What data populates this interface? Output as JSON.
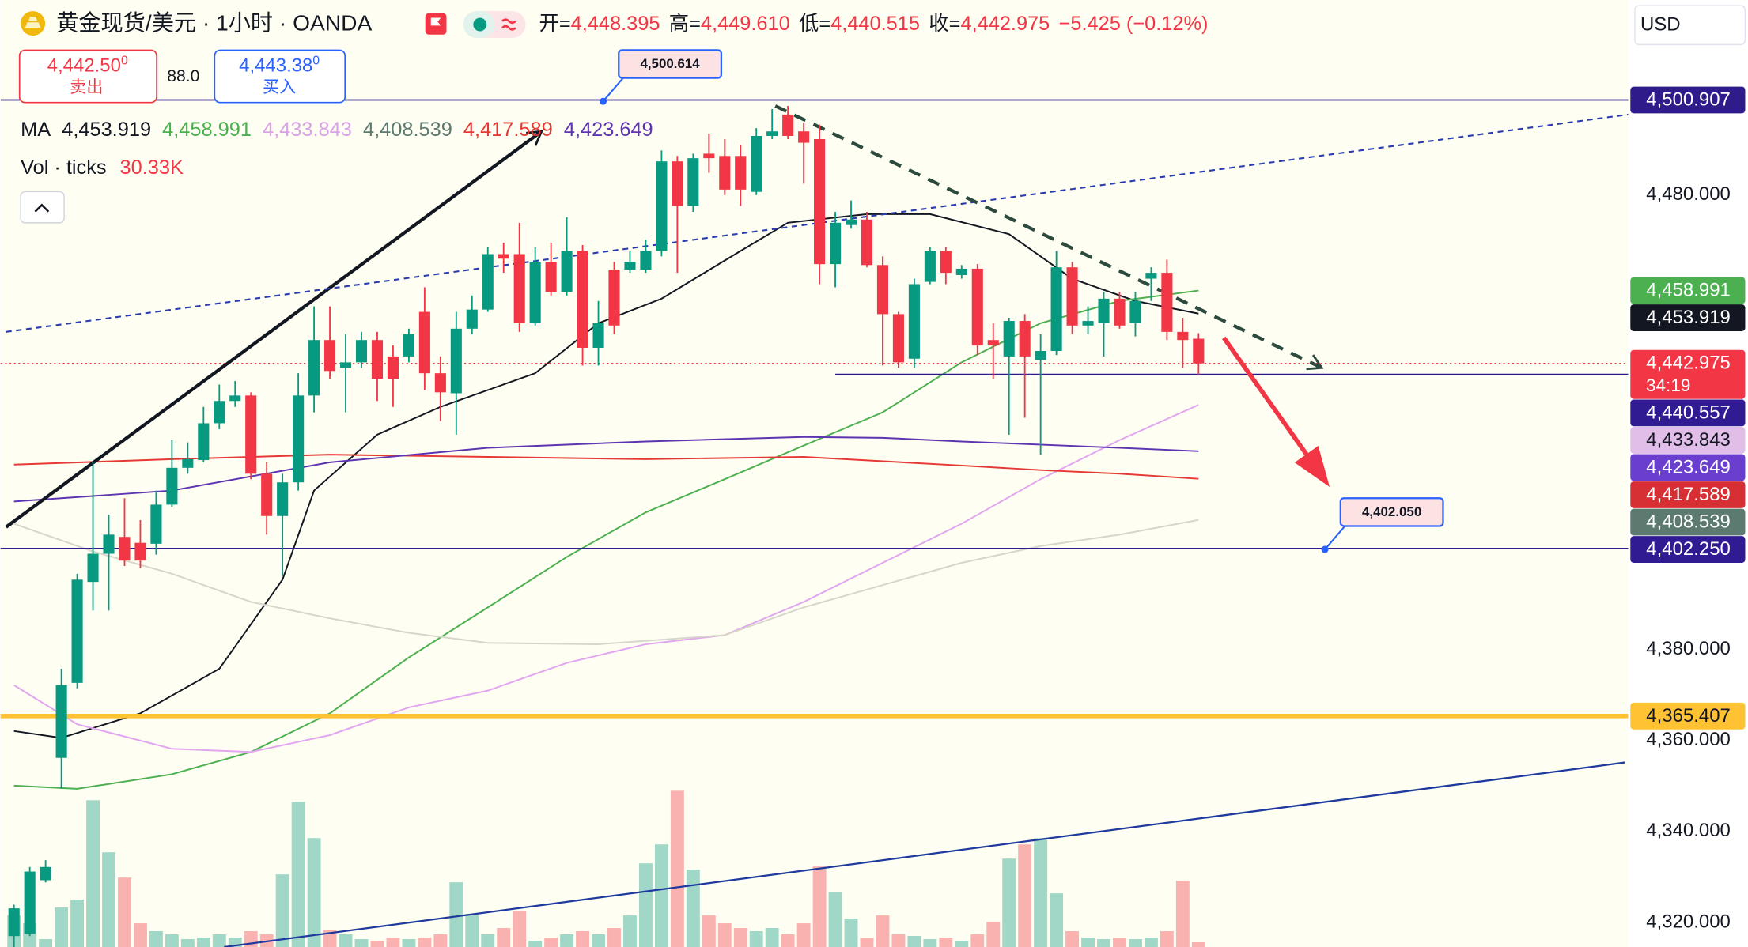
{
  "header": {
    "symbol": "黄金现货/美元 · 1小时 · OANDA",
    "ohlc": [
      {
        "key": "开=",
        "value": "4,448.395"
      },
      {
        "key": "高=",
        "value": "4,449.610"
      },
      {
        "key": "低=",
        "value": "4,440.515"
      },
      {
        "key": "收=",
        "value": "4,442.975"
      }
    ],
    "change": "−5.425 (−0.12%)",
    "sell": {
      "price": "4,442.50",
      "pip": "0",
      "label": "卖出"
    },
    "spread": "88.0",
    "buy": {
      "price": "4,443.38",
      "pip": "0",
      "label": "买入"
    },
    "currency": "USD"
  },
  "chart_data": {
    "type": "candlestick",
    "up_color": "#089981",
    "down_color": "#f23645",
    "xlim": [
      -0.85,
      102.2
    ],
    "ylim": [
      4314.6,
      4522.9
    ],
    "yticks": [
      {
        "value": 4480,
        "label": "4,480.000"
      },
      {
        "value": 4380,
        "label": "4,380.000"
      },
      {
        "value": 4360,
        "label": "4,360.000"
      },
      {
        "value": 4340,
        "label": "4,340.000"
      },
      {
        "value": 4320,
        "label": "4,320.000"
      }
    ],
    "y2lim": [
      0,
      600
    ],
    "candles": [
      [
        4317.0,
        4323.9,
        4314.6,
        4323.1
      ],
      [
        4317.5,
        4332.2,
        4317.0,
        4331.2
      ],
      [
        4329.3,
        4333.7,
        4328.8,
        4332.2
      ],
      [
        4356.2,
        4375.8,
        4349.4,
        4372.2
      ],
      [
        4372.7,
        4396.7,
        4371.5,
        4395.4
      ],
      [
        4394.9,
        4421.2,
        4388.6,
        4401.1
      ],
      [
        4401.1,
        4409.7,
        4388.6,
        4405.3
      ],
      [
        4404.8,
        4413.3,
        4398.4,
        4399.6
      ],
      [
        4403.5,
        4408.5,
        4397.9,
        4399.6
      ],
      [
        4403.3,
        4415.0,
        4400.9,
        4411.9
      ],
      [
        4411.9,
        4426.1,
        4411.4,
        4420.0
      ],
      [
        4420.0,
        4425.6,
        4418.7,
        4421.9
      ],
      [
        4421.7,
        4433.4,
        4421.2,
        4429.8
      ],
      [
        4429.8,
        4438.3,
        4428.5,
        4434.7
      ],
      [
        4434.7,
        4439.1,
        4433.4,
        4435.9
      ],
      [
        4435.9,
        4436.6,
        4417.5,
        4418.7
      ],
      [
        4418.7,
        4421.2,
        4405.3,
        4409.4
      ],
      [
        4409.4,
        4418.7,
        4396.2,
        4416.8
      ],
      [
        4416.8,
        4440.8,
        4415.0,
        4435.9
      ],
      [
        4435.9,
        4455.5,
        4432.2,
        4448.1
      ],
      [
        4448.1,
        4455.5,
        4439.6,
        4441.3
      ],
      [
        4442.0,
        4449.4,
        4432.2,
        4443.2
      ],
      [
        4443.2,
        4449.9,
        4442.0,
        4448.1
      ],
      [
        4448.1,
        4449.9,
        4434.7,
        4439.6
      ],
      [
        4444.5,
        4446.9,
        4433.4,
        4439.6
      ],
      [
        4444.5,
        4450.6,
        4443.2,
        4449.4
      ],
      [
        4454.3,
        4459.7,
        4437.1,
        4440.8
      ],
      [
        4440.8,
        4444.5,
        4430.3,
        4436.6
      ],
      [
        4436.4,
        4454.3,
        4427.3,
        4450.6
      ],
      [
        4450.6,
        4457.9,
        4449.4,
        4454.8
      ],
      [
        4454.8,
        4468.5,
        4454.3,
        4467.0
      ],
      [
        4467.0,
        4469.5,
        4462.9,
        4466.0
      ],
      [
        4467.0,
        4473.9,
        4449.9,
        4451.8
      ],
      [
        4451.8,
        4468.5,
        4451.3,
        4465.3
      ],
      [
        4465.3,
        4469.5,
        4457.9,
        4458.7
      ],
      [
        4458.7,
        4475.1,
        4457.9,
        4467.7
      ],
      [
        4467.7,
        4469.0,
        4442.5,
        4446.4
      ],
      [
        4446.4,
        4456.7,
        4442.5,
        4451.8
      ],
      [
        4463.6,
        4465.3,
        4449.4,
        4451.3
      ],
      [
        4463.6,
        4467.7,
        4462.9,
        4465.3
      ],
      [
        4463.6,
        4470.2,
        4462.9,
        4467.7
      ],
      [
        4467.7,
        4489.8,
        4466.5,
        4487.4
      ],
      [
        4487.4,
        4488.6,
        4462.9,
        4477.6
      ],
      [
        4477.6,
        4489.1,
        4476.3,
        4488.1
      ],
      [
        4489.1,
        4493.5,
        4484.9,
        4488.1
      ],
      [
        4488.6,
        4492.3,
        4480.0,
        4481.2
      ],
      [
        4488.6,
        4491.0,
        4477.6,
        4481.2
      ],
      [
        4480.7,
        4494.7,
        4480.0,
        4493.0
      ],
      [
        4493.0,
        4498.9,
        4492.3,
        4494.0
      ],
      [
        4497.7,
        4499.6,
        4492.3,
        4493.0
      ],
      [
        4494.0,
        4495.9,
        4482.5,
        4491.5
      ],
      [
        4492.3,
        4495.5,
        4460.4,
        4464.8
      ],
      [
        4464.8,
        4476.3,
        4459.7,
        4473.9
      ],
      [
        4473.4,
        4478.8,
        4472.6,
        4474.6
      ],
      [
        4474.6,
        4476.3,
        4464.1,
        4464.6
      ],
      [
        4464.6,
        4466.5,
        4442.5,
        4453.8
      ],
      [
        4453.8,
        4454.3,
        4442.0,
        4443.2
      ],
      [
        4444.0,
        4461.6,
        4442.0,
        4460.4
      ],
      [
        4460.9,
        4468.5,
        4460.4,
        4467.7
      ],
      [
        4467.7,
        4468.5,
        4460.4,
        4462.9
      ],
      [
        4462.4,
        4464.6,
        4461.6,
        4463.8
      ],
      [
        4463.8,
        4464.8,
        4444.8,
        4446.9
      ],
      [
        4448.1,
        4451.8,
        4439.6,
        4446.9
      ],
      [
        4444.5,
        4453.0,
        4427.3,
        4452.3
      ],
      [
        4452.3,
        4453.8,
        4431.0,
        4444.5
      ],
      [
        4443.7,
        4449.4,
        4422.9,
        4445.7
      ],
      [
        4445.7,
        4467.7,
        4444.8,
        4464.1
      ],
      [
        4464.1,
        4465.3,
        4449.4,
        4451.3
      ],
      [
        4451.3,
        4455.5,
        4449.4,
        4452.3
      ],
      [
        4451.8,
        4458.7,
        4444.5,
        4457.2
      ],
      [
        4457.2,
        4458.7,
        4450.6,
        4451.3
      ],
      [
        4451.8,
        4458.7,
        4448.9,
        4456.7
      ],
      [
        4461.6,
        4464.1,
        4456.7,
        4462.9
      ],
      [
        4462.9,
        4465.8,
        4448.1,
        4449.9
      ],
      [
        4449.9,
        4453.0,
        4442.0,
        4448.1
      ],
      [
        4448.395,
        4449.61,
        4440.515,
        4442.975
      ]
    ],
    "volume": {
      "axis": "y2",
      "up_color": "rgba(8,153,129,0.38)",
      "down_color": "rgba(242,54,69,0.38)",
      "values": [
        20,
        15,
        5,
        25,
        30,
        93,
        60,
        44,
        15,
        10,
        8,
        5,
        6,
        8,
        6,
        10,
        8,
        46,
        92,
        69,
        11,
        8,
        5,
        4,
        6,
        5,
        6,
        8,
        41,
        21,
        8,
        12,
        23,
        4,
        6,
        8,
        10,
        8,
        12,
        20,
        53,
        65,
        99,
        49,
        20,
        15,
        12,
        10,
        12,
        8,
        15,
        51,
        35,
        18,
        6,
        20,
        8,
        7,
        5,
        6,
        4,
        8,
        16,
        56,
        65,
        69,
        34,
        10,
        6,
        5,
        6,
        5,
        6,
        10,
        42,
        3
      ]
    },
    "ma_label": "MA",
    "vol_label": "Vol · ticks",
    "vol_value": "30.33K",
    "series": [
      {
        "color": "#131722",
        "label_color": "#131722",
        "legend_label": "4,453.919",
        "x": [
          0,
          3,
          8,
          13,
          17,
          19,
          23,
          27,
          33,
          37,
          41,
          46,
          49,
          54,
          58,
          63,
          67,
          71,
          75
        ],
        "values": [
          4362.1,
          4360.6,
          4366.0,
          4375.8,
          4395.4,
          4415.0,
          4427.3,
          4433.4,
          4440.8,
          4451.8,
          4457.2,
          4467.7,
          4473.9,
          4475.8,
          4475.8,
          4471.4,
          4461.6,
          4456.7,
          4453.919
        ]
      },
      {
        "color": "#4caf50",
        "label_color": "#4caf50",
        "legend_label": "4,458.991",
        "x": [
          0,
          4,
          10,
          15,
          20,
          25,
          30,
          35,
          40,
          45,
          50,
          55,
          60,
          65,
          70,
          75
        ],
        "values": [
          4350.1,
          4349.4,
          4352.6,
          4357.5,
          4366.0,
          4378.3,
          4389.3,
          4400.4,
          4410.2,
          4417.5,
          4424.9,
          4432.2,
          4443.2,
          4451.8,
          4456.7,
          4458.991
        ]
      },
      {
        "color": "#e1a6ef",
        "label_color": "#d9a3e6",
        "legend_label": "4,433.843",
        "x": [
          0,
          4,
          10,
          15,
          20,
          25,
          30,
          35,
          40,
          45,
          50,
          55,
          60,
          65,
          70,
          75
        ],
        "values": [
          4372.2,
          4363.6,
          4358.2,
          4357.5,
          4361.2,
          4367.3,
          4371.0,
          4377.1,
          4381.2,
          4383.2,
          4390.5,
          4399.1,
          4407.7,
          4417.5,
          4426.1,
          4433.843
        ]
      },
      {
        "color": "#d8d5ca",
        "label_color": "#5d7a70",
        "legend_label": "4,408.539",
        "x": [
          0,
          5,
          10,
          15,
          20,
          25,
          30,
          37,
          45,
          50,
          55,
          60,
          65,
          70,
          75
        ],
        "values": [
          4407.7,
          4401.6,
          4396.7,
          4390.5,
          4386.9,
          4383.7,
          4381.5,
          4381.2,
          4383.2,
          4389.3,
          4394.2,
          4399.1,
          4402.8,
          4405.3,
          4408.539
        ]
      },
      {
        "color": "#e53935",
        "label_color": "#e53935",
        "legend_label": "4,417.589",
        "x": [
          0,
          10,
          20,
          30,
          40,
          50,
          60,
          65,
          70,
          75
        ],
        "values": [
          4420.7,
          4421.9,
          4422.9,
          4422.4,
          4421.9,
          4422.4,
          4420.5,
          4419.5,
          4418.7,
          4417.589
        ]
      },
      {
        "color": "#5e35b1",
        "label_color": "#5e35b1",
        "legend_label": "4,423.649",
        "x": [
          0,
          10,
          20,
          30,
          40,
          50,
          55,
          60,
          70,
          75
        ],
        "values": [
          4412.6,
          4415.0,
          4421.2,
          4424.4,
          4425.8,
          4426.8,
          4426.6,
          4425.8,
          4424.4,
          4423.649
        ]
      }
    ],
    "price_labels": [
      {
        "value": 4500.907,
        "label": "4,500.907",
        "color": "#2f1c8a",
        "line_width": 1.2
      },
      {
        "value": 4458.991,
        "label": "4,458.991",
        "color": "#4caf50"
      },
      {
        "value": 4453.919,
        "label": "4,453.919",
        "color": "#131722"
      },
      {
        "value": 4442.975,
        "label": "4,442.975",
        "color": "#f23645",
        "countdown": "34:19",
        "line_width": 1,
        "line_dash": "1.5 2.5"
      },
      {
        "value": 4440.557,
        "label": "4,440.557",
        "color": "#311b92",
        "line_width": 1.2,
        "line_from": 52
      },
      {
        "value": 4433.843,
        "label": "4,433.843",
        "color": "#e1bee7",
        "text_color": "#131722"
      },
      {
        "value": 4423.649,
        "label": "4,423.649",
        "color": "#6a3fd0"
      },
      {
        "value": 4417.589,
        "label": "4,417.589",
        "color": "#d63035"
      },
      {
        "value": 4408.539,
        "label": "4,408.539",
        "color": "#5d7a70"
      },
      {
        "value": 4402.25,
        "label": "4,402.250",
        "color": "#311b92",
        "line_width": 1.2
      },
      {
        "value": 4365.407,
        "label": "4,365.407",
        "color": "#ffc233",
        "text_color": "#131722",
        "line_width": 4
      }
    ],
    "drawings": [
      {
        "points": [
          [
            -0.5,
            4406.97
          ],
          [
            33.4,
            4494.0
          ]
        ],
        "color": "#131722",
        "width": 3,
        "arrow": "open"
      },
      {
        "points": [
          [
            -0.5,
            4449.9
          ],
          [
            102.2,
            4497.7
          ]
        ],
        "color": "#2a3cb0",
        "width": 1.5,
        "dash": "5 4"
      },
      {
        "points": [
          [
            48.2,
            4499.6
          ],
          [
            82.8,
            4442.0
          ]
        ],
        "color": "#2d4a3e",
        "width": 3,
        "dash": "11 8",
        "arrow": "open"
      },
      {
        "points": [
          [
            13.3,
            4314.6
          ],
          [
            102.0,
            4355.2
          ]
        ],
        "color": "#1f3a9e",
        "width": 1.6
      },
      {
        "points": [
          [
            76.6,
            4448.6
          ],
          [
            83.3,
            4415.8
          ]
        ],
        "color": "#f23645",
        "width": 4,
        "arrow": "filled"
      }
    ],
    "callouts": [
      {
        "point": [
          37.3,
          4500.614
        ],
        "label": "4,500.614"
      },
      {
        "point": [
          83.0,
          4402.05
        ],
        "label": "4,402.050"
      }
    ]
  }
}
